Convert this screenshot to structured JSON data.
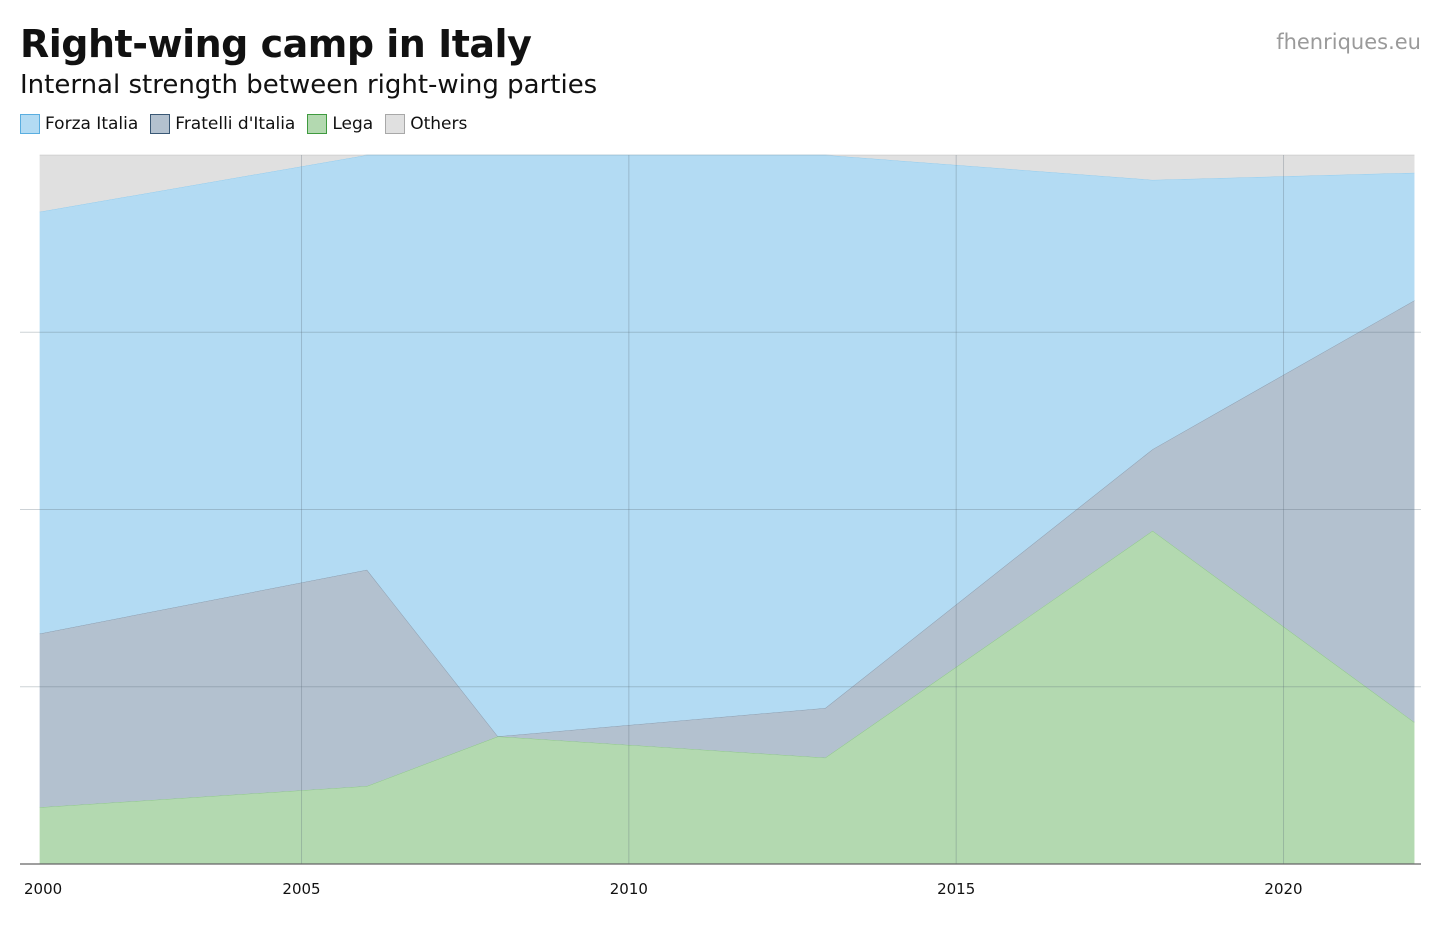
{
  "header": {
    "title": "Right-wing camp in Italy",
    "subtitle": "Internal strength between right-wing parties",
    "source": "fhenriques.eu"
  },
  "chart_data": {
    "type": "area",
    "stacked": true,
    "normalized": true,
    "title": "Right-wing camp in Italy",
    "subtitle": "Internal strength between right-wing parties",
    "x": [
      2001,
      2006,
      2008,
      2013,
      2018,
      2022
    ],
    "xlim": [
      2000.7,
      2022.1
    ],
    "ylim": [
      0,
      100
    ],
    "xticks": [
      2000,
      2005,
      2010,
      2015,
      2020
    ],
    "yticks": [
      25,
      50,
      75
    ],
    "grid": true,
    "legend": "top-left",
    "series": [
      {
        "name": "Lega",
        "color": "#b3d9b0",
        "stroke": "#3f9a3f",
        "values": [
          8,
          11,
          18,
          15,
          47,
          20
        ]
      },
      {
        "name": "Fratelli d'Italia",
        "color": "#b3c1cf",
        "stroke": "#3a5875",
        "values": [
          24.5,
          30.5,
          0,
          7,
          11.5,
          59.5
        ]
      },
      {
        "name": "Forza Italia",
        "color": "#b3dbf3",
        "stroke": "#5aaee0",
        "values": [
          59.5,
          58.5,
          82,
          78,
          38,
          18
        ]
      },
      {
        "name": "Others",
        "color": "#e0e0e0",
        "stroke": "#a8a8a8",
        "values": [
          8,
          0,
          0,
          0,
          3.5,
          2.5
        ]
      }
    ],
    "legend_order": [
      "Forza Italia",
      "Fratelli d'Italia",
      "Lega",
      "Others"
    ]
  }
}
